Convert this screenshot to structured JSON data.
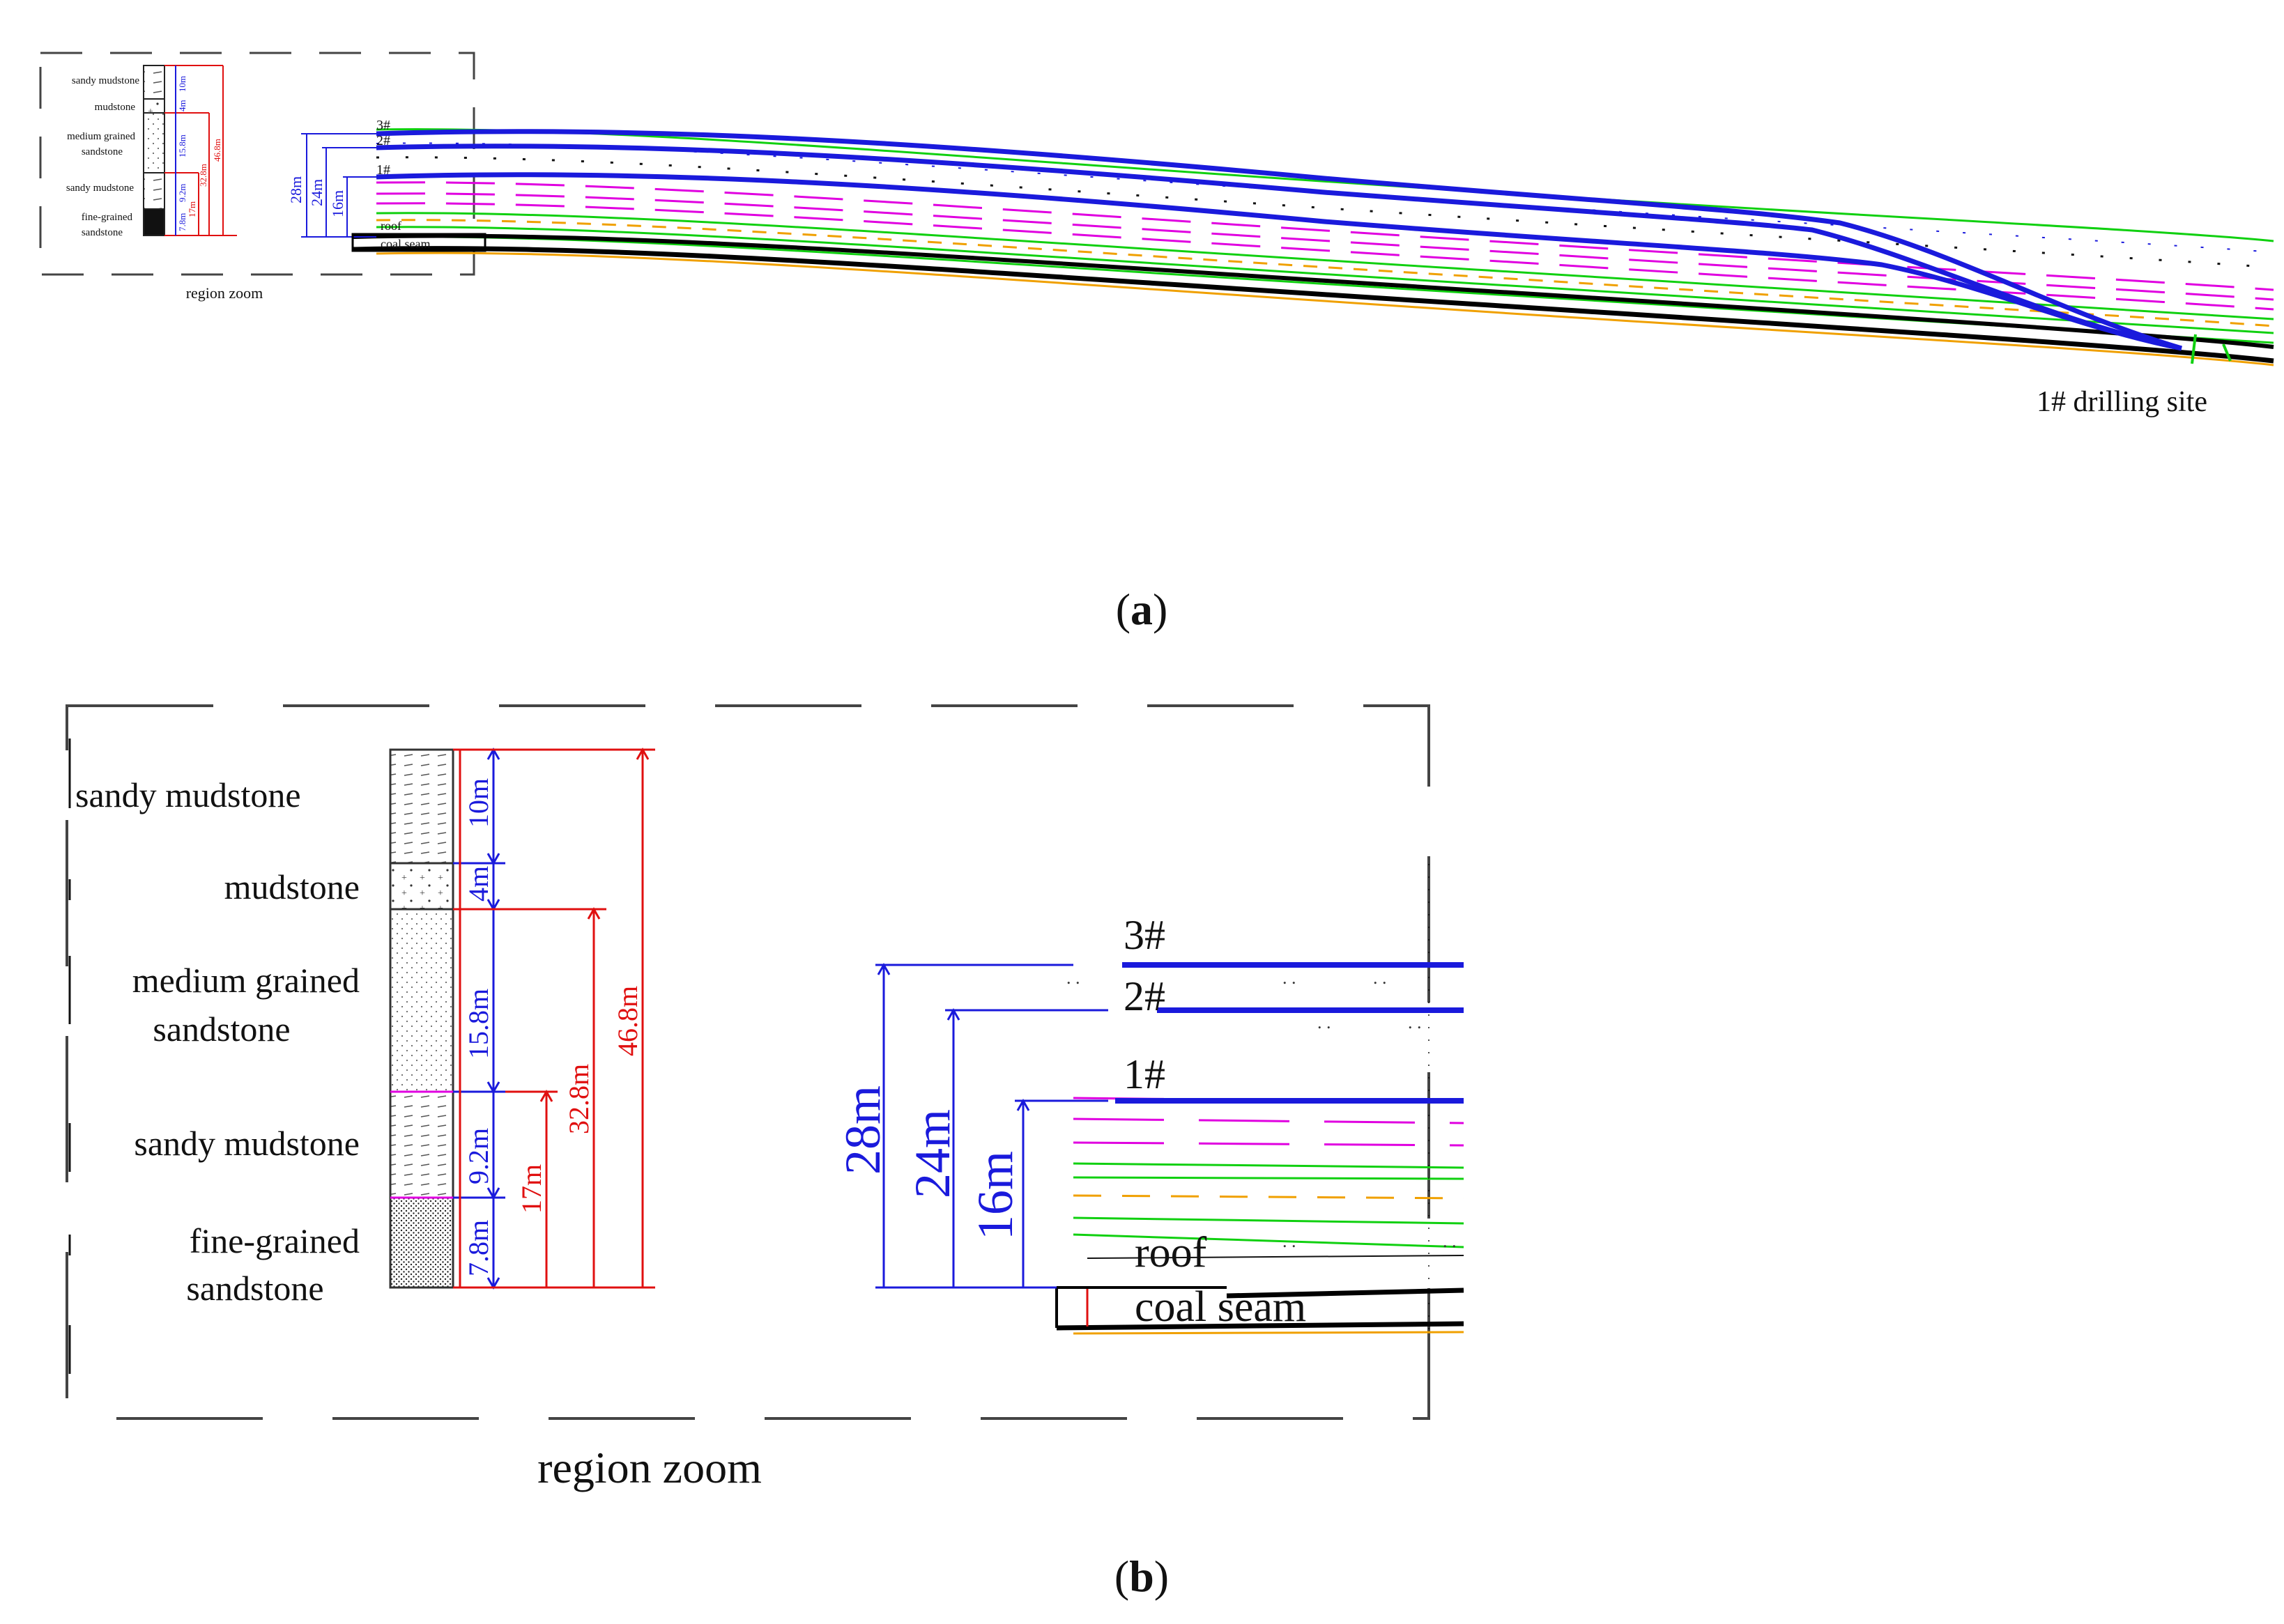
{
  "panel_a": {
    "caption_open": "(",
    "caption_letter": "a",
    "caption_close": ")",
    "inset": {
      "layers": [
        "sandy mudstone",
        "mudstone",
        "medium grained",
        "sandstone",
        "sandy mudstone",
        "fine-grained",
        "sandstone"
      ],
      "thickness": [
        "10m",
        "4m",
        "15.8m",
        "9.2m",
        "7.8m"
      ],
      "cumulative": [
        "17m",
        "32.8m",
        "46.8m"
      ],
      "label": "region zoom"
    },
    "boreholes": [
      "3#",
      "2#",
      "1#"
    ],
    "heights": [
      "28m",
      "24m",
      "16m"
    ],
    "roof_label": "roof",
    "seam_label": "coal seam",
    "site_label": "1# drilling site"
  },
  "panel_b": {
    "caption_open": "(",
    "caption_letter": "b",
    "caption_close": ")",
    "layers": {
      "l1": "sandy mudstone",
      "l2": "mudstone",
      "l3a": "medium grained",
      "l3b": "sandstone",
      "l4": "sandy mudstone",
      "l5a": "fine-grained",
      "l5b": "sandstone"
    },
    "thickness": {
      "t1": "10m",
      "t2": "4m",
      "t3": "15.8m",
      "t4": "9.2m",
      "t5": "7.8m"
    },
    "cumulative": {
      "c1": "17m",
      "c2": "32.8m",
      "c3": "46.8m"
    },
    "boreholes": {
      "b3": "3#",
      "b2": "2#",
      "b1": "1#"
    },
    "heights": {
      "h28": "28m",
      "h24": "24m",
      "h16": "16m"
    },
    "roof_label": "roof",
    "seam_label": "coal seam",
    "zoom_label": "region zoom"
  },
  "colors": {
    "borehole": "#1a1adc",
    "dimension_red": "#e01010",
    "dimension_blue": "#1a1adc",
    "sandy_mudstone_line": "#e000e0",
    "sandstone_line": "#10d010",
    "dashed_orange": "#f0a000",
    "coal": "#000000"
  }
}
